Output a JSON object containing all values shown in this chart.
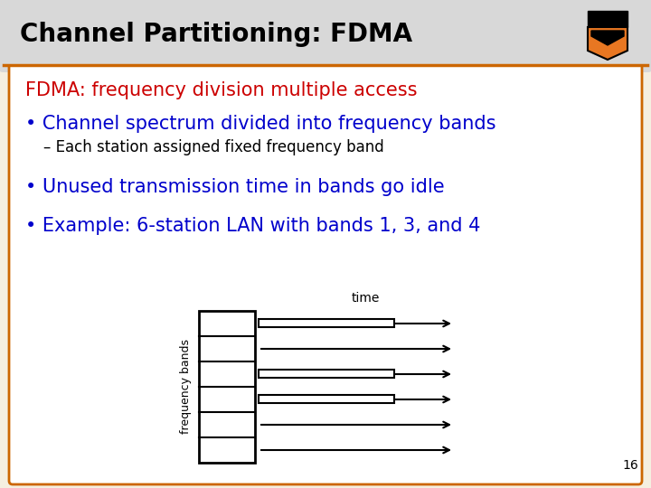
{
  "title": "Channel Partitioning: FDMA",
  "title_color": "#000000",
  "title_fontsize": 20,
  "bg_color": "#ffffff",
  "outer_bg": "#f5efe0",
  "border_color": "#cc6600",
  "subtitle": "FDMA: frequency division multiple access",
  "subtitle_color": "#cc0000",
  "subtitle_fontsize": 15,
  "bullets": [
    "• Channel spectrum divided into frequency bands",
    "– Each station assigned fixed frequency band",
    "• Unused transmission time in bands go idle",
    "• Example: 6-station LAN with bands 1, 3, and 4"
  ],
  "bullet_colors": [
    "#0000cc",
    "#000000",
    "#0000cc",
    "#0000cc"
  ],
  "bullet_fontsizes": [
    15,
    12,
    15,
    15
  ],
  "bullet_bold": [
    false,
    false,
    false,
    false
  ],
  "num_bands": 6,
  "active_bands": [
    1,
    3,
    4
  ],
  "diagram_xlabel": "frequency bands",
  "time_label": "time",
  "page_number": "16",
  "diagram_box_color": "#000000",
  "arrow_color": "#000000",
  "title_bar_color": "#d8d8d8",
  "content_bg": "#ffffff"
}
